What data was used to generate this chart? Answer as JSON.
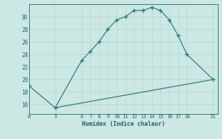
{
  "title": "",
  "xlabel": "Humidex (Indice chaleur)",
  "line1_x": [
    0,
    3,
    6,
    7,
    8,
    9,
    10,
    11,
    12,
    13,
    14,
    15,
    16,
    17,
    18,
    21
  ],
  "line1_y": [
    19.0,
    15.5,
    23.0,
    24.5,
    26.0,
    28.0,
    29.5,
    30.0,
    31.0,
    31.0,
    31.5,
    31.0,
    29.5,
    27.0,
    24.0,
    20.0
  ],
  "line2_x": [
    3,
    21
  ],
  "line2_y": [
    15.5,
    20.0
  ],
  "line_color": "#2e7d6e",
  "bg_color": "#cce8e4",
  "grid_major_color": "#b8d8d4",
  "grid_minor_color": "#cce8e4",
  "xticks": [
    0,
    3,
    6,
    7,
    8,
    9,
    10,
    11,
    12,
    13,
    14,
    15,
    16,
    17,
    18,
    21
  ],
  "yticks": [
    16,
    18,
    20,
    22,
    24,
    26,
    28,
    30
  ],
  "ylim": [
    14.5,
    32.0
  ],
  "xlim": [
    0,
    21.5
  ]
}
